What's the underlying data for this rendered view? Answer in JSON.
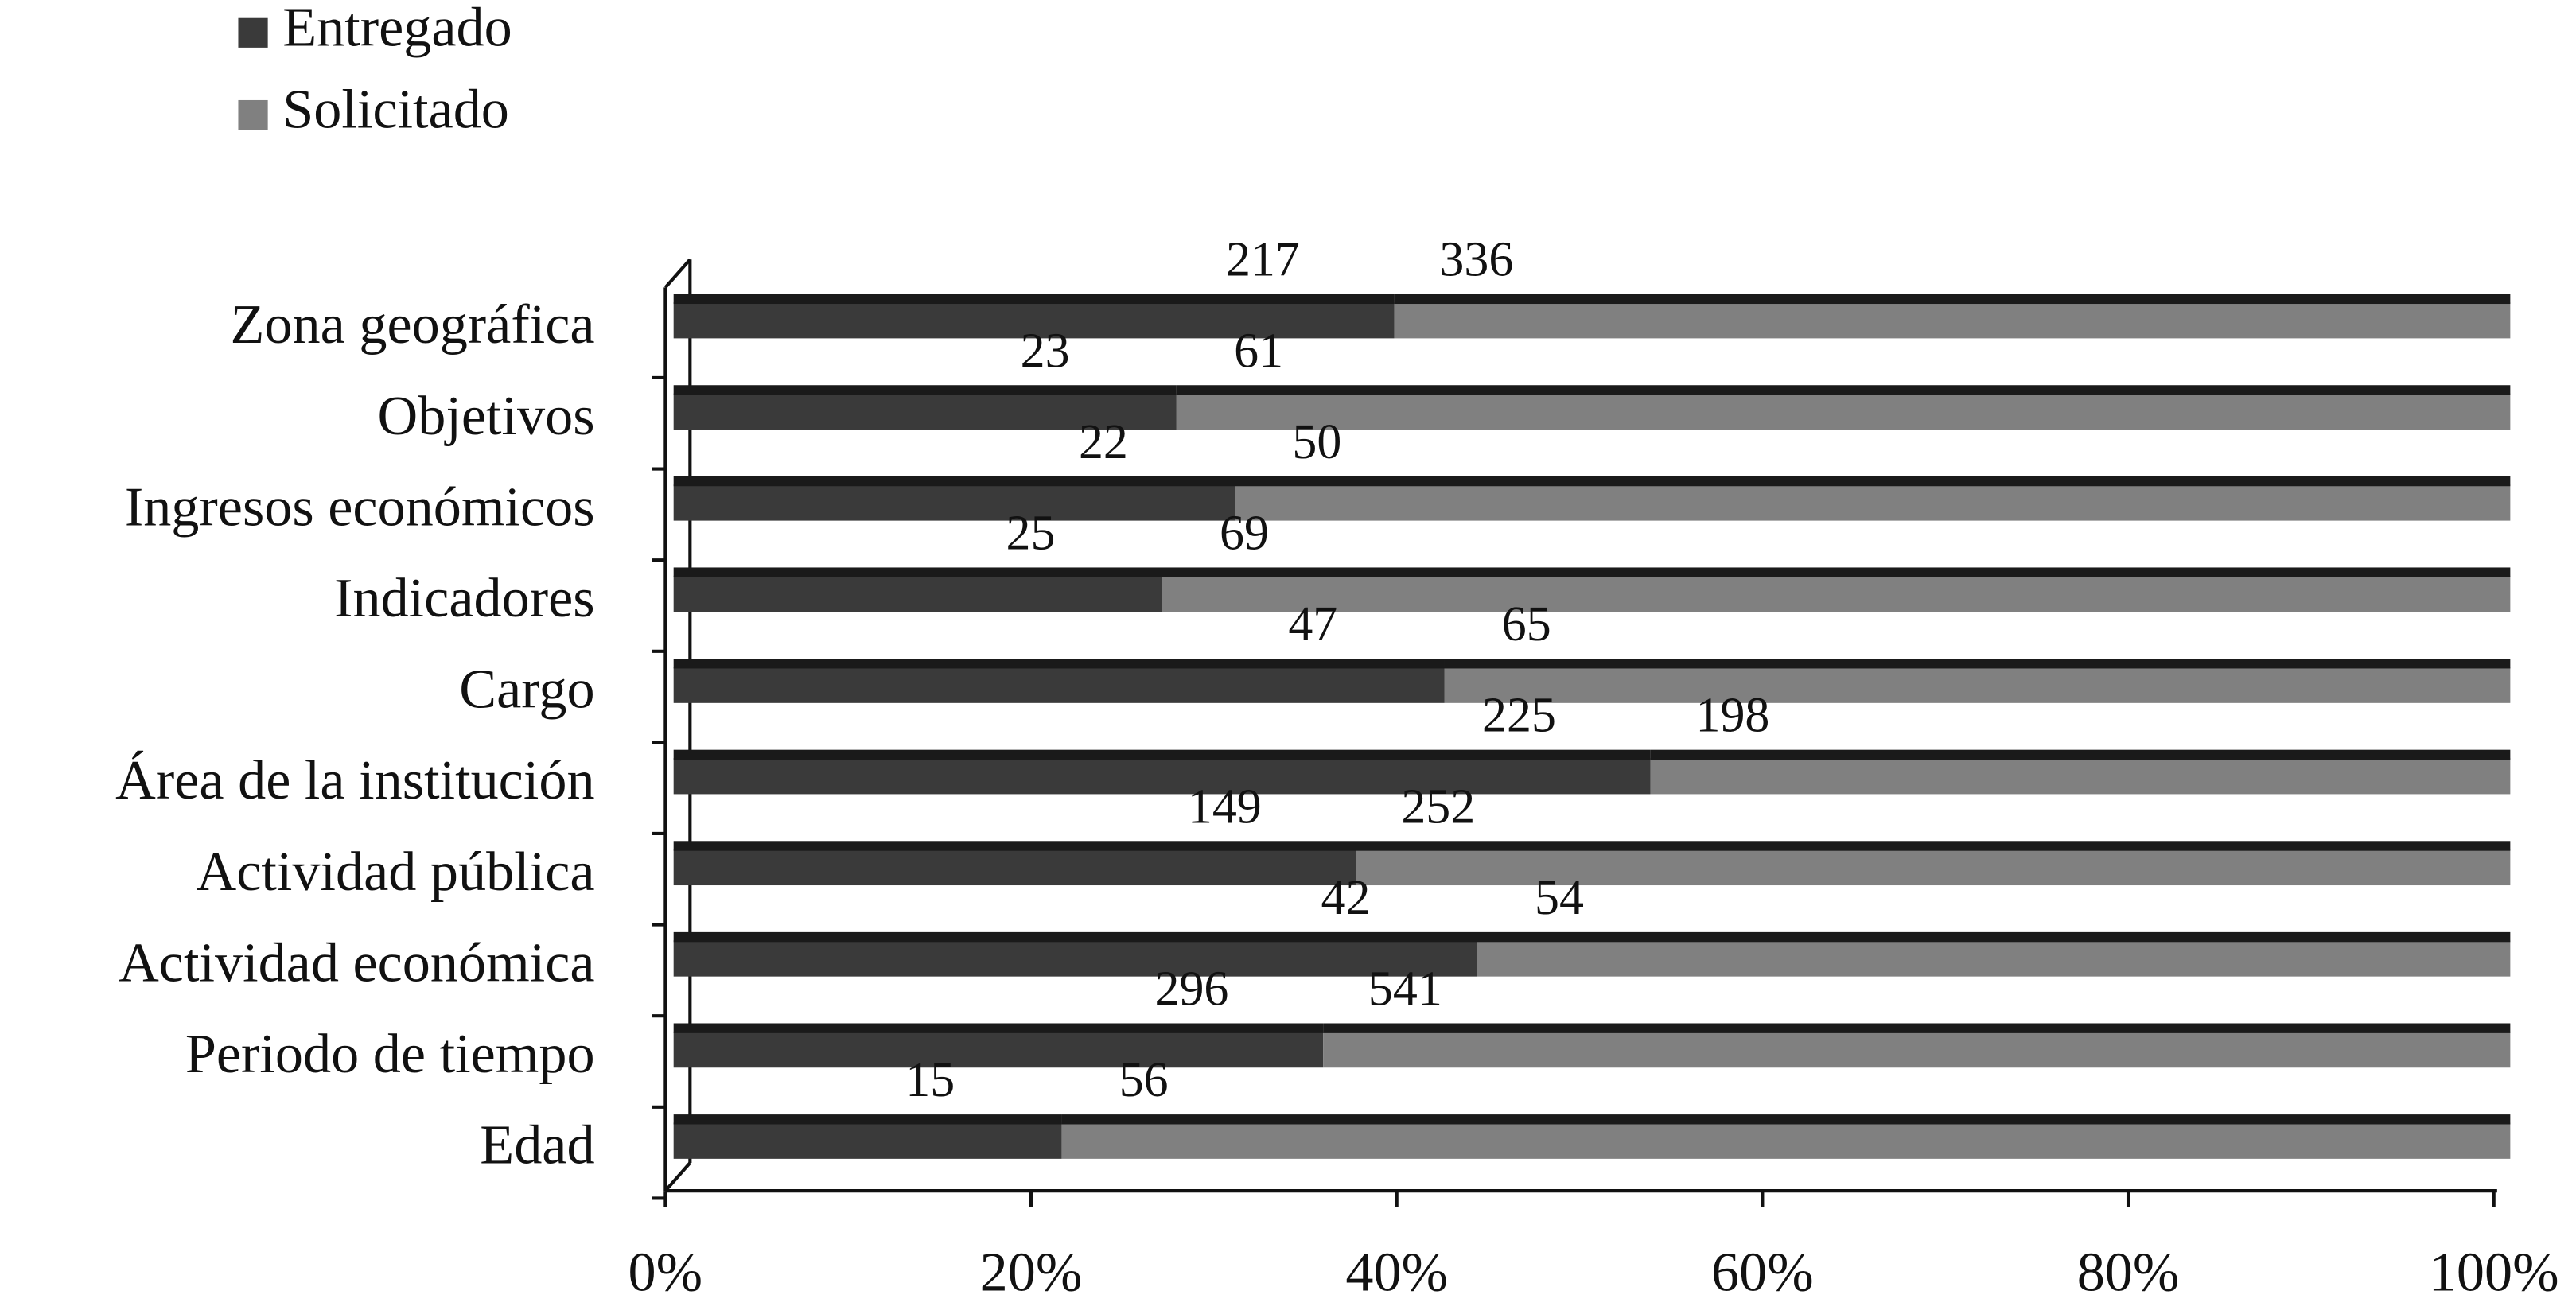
{
  "chart_data": {
    "type": "bar",
    "orientation": "horizontal",
    "stacked": "percent",
    "categories": [
      "Zona geográfica",
      "Objetivos",
      "Ingresos económicos",
      "Indicadores",
      "Cargo",
      "Área de la institución",
      "Actividad pública",
      "Actividad económica",
      "Periodo de tiempo",
      "Edad"
    ],
    "series": [
      {
        "name": "Entregado",
        "color": "#3a3a3a",
        "values": [
          217,
          23,
          22,
          25,
          47,
          225,
          149,
          42,
          296,
          15
        ]
      },
      {
        "name": "Solicitado",
        "color": "#808080",
        "values": [
          336,
          61,
          50,
          69,
          65,
          198,
          252,
          54,
          541,
          56
        ]
      }
    ],
    "xlim": [
      0,
      100
    ],
    "xticks": [
      {
        "value": 0,
        "label": "0%"
      },
      {
        "value": 20,
        "label": "20%"
      },
      {
        "value": 40,
        "label": "40%"
      },
      {
        "value": 60,
        "label": "60%"
      },
      {
        "value": 80,
        "label": "80%"
      },
      {
        "value": 100,
        "label": "100%"
      }
    ],
    "legend": "top-left"
  }
}
